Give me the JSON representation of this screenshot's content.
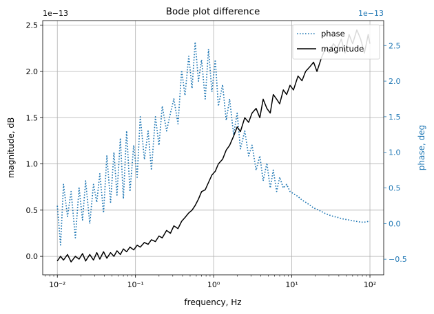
{
  "chart_data": {
    "type": "line",
    "title": "Bode plot difference",
    "xlabel": "frequency, Hz",
    "ylabel": "magnitude, dB",
    "ylabel_right": "phase, deg",
    "xscale": "log",
    "xlim": [
      0.0065,
      150
    ],
    "ylim": [
      -2e-14,
      2.55e-13
    ],
    "ylim_right": [
      -7.2e-14,
      2.85e-13
    ],
    "x_ticks": [
      0.01,
      0.1,
      1,
      10,
      100
    ],
    "x_tick_labels": [
      "10⁻²",
      "10⁻¹",
      "10⁰",
      "10¹",
      "10²"
    ],
    "y_ticks": [
      0.0,
      0.5,
      1.0,
      1.5,
      2.0,
      2.5
    ],
    "y_tick_labels": [
      "0.0",
      "0.5",
      "1.0",
      "1.5",
      "2.0",
      "2.5"
    ],
    "y_offset_label": "1e−13",
    "y_right_ticks": [
      -0.5,
      0.0,
      0.5,
      1.0,
      1.5,
      2.0,
      2.5
    ],
    "y_right_tick_labels": [
      "−0.5",
      "0.0",
      "0.5",
      "1.0",
      "1.5",
      "2.0",
      "2.5"
    ],
    "y_right_offset_label": "1e−13",
    "grid": true,
    "legend_position": "top-right",
    "series": [
      {
        "name": "phase",
        "axis": "right",
        "style": "dotted",
        "color": "#1f77b4",
        "x": [
          0.01,
          0.011,
          0.012,
          0.0135,
          0.015,
          0.017,
          0.019,
          0.021,
          0.023,
          0.026,
          0.029,
          0.032,
          0.035,
          0.039,
          0.043,
          0.048,
          0.053,
          0.058,
          0.064,
          0.07,
          0.077,
          0.085,
          0.095,
          0.105,
          0.115,
          0.13,
          0.145,
          0.16,
          0.18,
          0.2,
          0.22,
          0.25,
          0.28,
          0.31,
          0.35,
          0.39,
          0.43,
          0.48,
          0.53,
          0.58,
          0.64,
          0.7,
          0.78,
          0.86,
          0.95,
          1.05,
          1.15,
          1.3,
          1.45,
          1.6,
          1.8,
          2.0,
          2.2,
          2.5,
          2.8,
          3.1,
          3.5,
          3.9,
          4.3,
          4.8,
          5.3,
          5.8,
          6.4,
          7.0,
          7.8,
          8.6,
          9.5,
          10.5,
          12,
          13.5,
          15,
          17,
          19,
          21,
          24,
          27,
          30,
          34,
          38,
          43,
          48,
          54,
          60,
          68,
          76,
          85,
          95,
          100
        ],
        "values": [
          0.25,
          -0.3,
          0.55,
          0.1,
          0.45,
          -0.2,
          0.5,
          0.05,
          0.6,
          0.0,
          0.55,
          0.3,
          0.7,
          0.15,
          0.95,
          0.3,
          1.0,
          0.4,
          1.2,
          0.35,
          1.3,
          0.45,
          1.1,
          0.65,
          1.5,
          0.9,
          1.3,
          0.75,
          1.5,
          1.1,
          1.65,
          1.3,
          1.55,
          1.75,
          1.4,
          2.15,
          1.8,
          2.35,
          1.9,
          2.55,
          2.0,
          2.3,
          1.75,
          2.45,
          1.85,
          2.3,
          1.65,
          1.95,
          1.45,
          1.75,
          1.25,
          1.55,
          1.05,
          1.3,
          0.95,
          1.1,
          0.75,
          0.95,
          0.6,
          0.85,
          0.5,
          0.75,
          0.45,
          0.65,
          0.5,
          0.55,
          0.45,
          0.42,
          0.38,
          0.33,
          0.3,
          0.26,
          0.22,
          0.2,
          0.17,
          0.14,
          0.12,
          0.1,
          0.09,
          0.07,
          0.06,
          0.05,
          0.04,
          0.03,
          0.02,
          0.02,
          0.03,
          0.03
        ]
      },
      {
        "name": "magnitude",
        "axis": "left",
        "style": "solid",
        "color": "#000000",
        "x": [
          0.01,
          0.011,
          0.012,
          0.0135,
          0.015,
          0.017,
          0.019,
          0.021,
          0.023,
          0.026,
          0.029,
          0.032,
          0.035,
          0.039,
          0.043,
          0.048,
          0.053,
          0.058,
          0.064,
          0.07,
          0.077,
          0.085,
          0.095,
          0.105,
          0.115,
          0.13,
          0.145,
          0.16,
          0.18,
          0.2,
          0.22,
          0.25,
          0.28,
          0.31,
          0.35,
          0.39,
          0.43,
          0.48,
          0.53,
          0.58,
          0.64,
          0.7,
          0.78,
          0.86,
          0.95,
          1.05,
          1.15,
          1.3,
          1.45,
          1.6,
          1.8,
          2.0,
          2.2,
          2.5,
          2.8,
          3.1,
          3.5,
          3.9,
          4.3,
          4.8,
          5.3,
          5.8,
          6.4,
          7.0,
          7.8,
          8.6,
          9.5,
          10.5,
          12,
          13.5,
          15,
          17,
          19,
          21,
          24,
          27,
          30,
          34,
          38,
          43,
          48,
          54,
          60,
          68,
          76,
          85,
          95,
          100
        ],
        "values": [
          -0.05,
          0.0,
          -0.04,
          0.02,
          -0.06,
          0.0,
          -0.03,
          0.03,
          -0.05,
          0.02,
          -0.04,
          0.04,
          -0.03,
          0.05,
          -0.02,
          0.04,
          0.0,
          0.06,
          0.02,
          0.08,
          0.05,
          0.1,
          0.07,
          0.12,
          0.1,
          0.15,
          0.13,
          0.18,
          0.16,
          0.22,
          0.2,
          0.28,
          0.25,
          0.33,
          0.3,
          0.38,
          0.42,
          0.47,
          0.5,
          0.55,
          0.62,
          0.7,
          0.72,
          0.8,
          0.88,
          0.92,
          1.0,
          1.05,
          1.15,
          1.2,
          1.3,
          1.4,
          1.35,
          1.5,
          1.45,
          1.55,
          1.6,
          1.5,
          1.7,
          1.6,
          1.55,
          1.75,
          1.7,
          1.65,
          1.8,
          1.75,
          1.85,
          1.8,
          1.95,
          1.9,
          2.0,
          2.05,
          2.1,
          2.0,
          2.15,
          2.25,
          2.2,
          2.3,
          2.25,
          2.35,
          2.2,
          2.4,
          2.3,
          2.45,
          2.35,
          2.2,
          2.4,
          2.3
        ]
      }
    ]
  }
}
